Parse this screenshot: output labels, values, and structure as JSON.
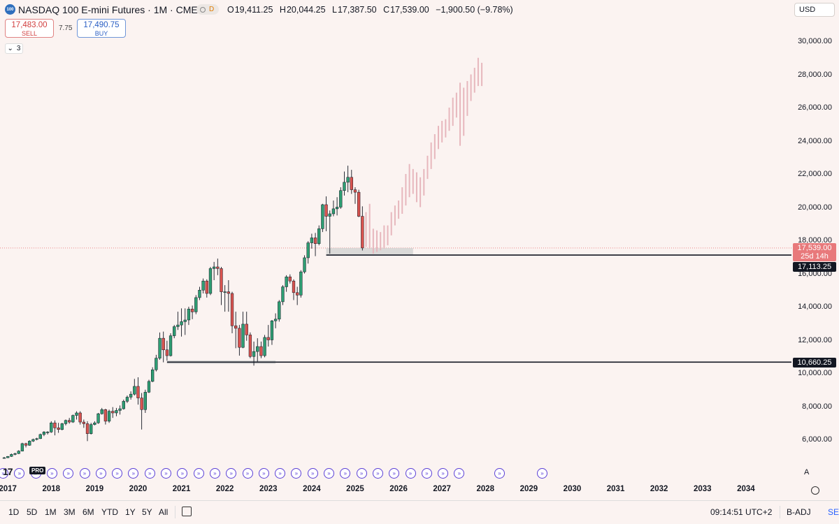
{
  "header": {
    "logo_text": "100",
    "title": "NASDAQ 100 E-mini Futures · 1M · CME",
    "data_badge": "D",
    "ohlc": {
      "o_label": "O",
      "o": "19,411.25",
      "h_label": "H",
      "h": "20,044.25",
      "l_label": "L",
      "l": "17,387.50",
      "c_label": "C",
      "c": "17,539.00",
      "change": "−1,900.50 (−9.78%)"
    },
    "currency": "USD"
  },
  "trade": {
    "sell_price": "17,483.00",
    "sell_label": "SELL",
    "spread": "7.75",
    "buy_price": "17,490.75",
    "buy_label": "BUY"
  },
  "indicators_collapsed_count": "3",
  "price_axis": {
    "ticks": [
      "30,000.00",
      "28,000.00",
      "26,000.00",
      "24,000.00",
      "22,000.00",
      "20,000.00",
      "18,000.00",
      "16,000.00",
      "14,000.00",
      "12,000.00",
      "10,000.00",
      "8,000.00",
      "6,000.00"
    ],
    "tick_values": [
      30000,
      28000,
      26000,
      24000,
      22000,
      20000,
      18000,
      16000,
      14000,
      12000,
      10000,
      8000,
      6000
    ],
    "last_price": "17,539.00",
    "countdown": "25d 14h",
    "level_1": "17,113.25",
    "level_2": "10,660.25"
  },
  "time_axis": {
    "labels": [
      "2017",
      "2018",
      "2019",
      "2020",
      "2021",
      "2022",
      "2023",
      "2024",
      "2025",
      "2026",
      "2027",
      "2028",
      "2029",
      "2030",
      "2031",
      "2032",
      "2033",
      "2034"
    ]
  },
  "events_icon": "dividend-arrow-icon",
  "branding": {
    "tv": "17",
    "pro": "PRO"
  },
  "auto_scale": "A",
  "bottom_bar": {
    "ranges": [
      "1D",
      "5D",
      "1M",
      "3M",
      "6M",
      "YTD",
      "1Y",
      "5Y",
      "All"
    ],
    "clock": "09:14:51 UTC+2",
    "adjust": "B-ADJ",
    "session": "SET"
  },
  "colors": {
    "up": "#2e9e73",
    "down": "#d9534f",
    "projection": "#e7b7bd",
    "background": "#fbf3f1",
    "last_price_tag": "#e8797b",
    "level_tag": "#131722"
  },
  "chart_data": {
    "type": "candlestick",
    "x_start": "2016-12",
    "interval": "1M",
    "ylim": [
      4500,
      31000
    ],
    "levels": [
      17113.25,
      10660.25
    ],
    "last_close": 17539.0,
    "candles": [
      [
        4880,
        4950,
        4850,
        4900
      ],
      [
        4900,
        5000,
        4880,
        4980
      ],
      [
        4980,
        5150,
        4950,
        5100
      ],
      [
        5100,
        5200,
        5050,
        5150
      ],
      [
        5150,
        5350,
        5120,
        5300
      ],
      [
        5300,
        5800,
        5280,
        5750
      ],
      [
        5750,
        5800,
        5520,
        5650
      ],
      [
        5650,
        5950,
        5620,
        5900
      ],
      [
        5900,
        6050,
        5850,
        6000
      ],
      [
        6000,
        6100,
        5950,
        6050
      ],
      [
        6050,
        6350,
        6030,
        6300
      ],
      [
        6300,
        6500,
        6200,
        6450
      ],
      [
        6450,
        6500,
        6300,
        6450
      ],
      [
        6450,
        7100,
        6400,
        7000
      ],
      [
        7000,
        7150,
        6250,
        6700
      ],
      [
        6700,
        7000,
        6400,
        6600
      ],
      [
        6600,
        7000,
        6550,
        6950
      ],
      [
        6950,
        7200,
        6850,
        7150
      ],
      [
        7150,
        7300,
        6950,
        7050
      ],
      [
        7050,
        7500,
        7000,
        7450
      ],
      [
        7450,
        7700,
        7200,
        7600
      ],
      [
        7600,
        7700,
        6900,
        7050
      ],
      [
        7050,
        7200,
        6700,
        6950
      ],
      [
        6950,
        7100,
        5900,
        6350
      ],
      [
        6350,
        7000,
        6300,
        6900
      ],
      [
        6900,
        7100,
        6850,
        7000
      ],
      [
        7000,
        7600,
        6950,
        7550
      ],
      [
        7550,
        7900,
        7500,
        7800
      ],
      [
        7800,
        7850,
        6900,
        7100
      ],
      [
        7100,
        7800,
        7000,
        7700
      ],
      [
        7700,
        7950,
        7300,
        7600
      ],
      [
        7600,
        7900,
        7400,
        7750
      ],
      [
        7750,
        8050,
        7500,
        7850
      ],
      [
        7850,
        8400,
        7800,
        8300
      ],
      [
        8300,
        8650,
        8200,
        8550
      ],
      [
        8550,
        8900,
        8400,
        8730
      ],
      [
        8730,
        9650,
        8650,
        9200
      ],
      [
        9200,
        9750,
        8100,
        8500
      ],
      [
        8500,
        8800,
        6600,
        7800
      ],
      [
        7800,
        9000,
        7600,
        8850
      ],
      [
        8850,
        9600,
        8800,
        9500
      ],
      [
        9500,
        10350,
        9450,
        10200
      ],
      [
        10200,
        11100,
        10100,
        10900
      ],
      [
        10900,
        12450,
        10800,
        12100
      ],
      [
        12100,
        12500,
        10650,
        11400
      ],
      [
        11400,
        11950,
        10750,
        11050
      ],
      [
        11050,
        12400,
        11000,
        12250
      ],
      [
        12250,
        12900,
        12100,
        12800
      ],
      [
        12800,
        13700,
        12600,
        12900
      ],
      [
        12900,
        13900,
        12200,
        13100
      ],
      [
        13100,
        13900,
        12300,
        13200
      ],
      [
        13200,
        14000,
        12900,
        13860
      ],
      [
        13860,
        14070,
        13250,
        13690
      ],
      [
        13690,
        14700,
        13550,
        14550
      ],
      [
        14550,
        15200,
        14400,
        15000
      ],
      [
        15000,
        15700,
        14800,
        15550
      ],
      [
        15550,
        15650,
        14550,
        14800
      ],
      [
        14800,
        16400,
        14700,
        16300
      ],
      [
        16300,
        16700,
        15600,
        16400
      ],
      [
        16400,
        16900,
        15900,
        16300
      ],
      [
        16300,
        16400,
        14100,
        14900
      ],
      [
        14900,
        15300,
        13700,
        14900
      ],
      [
        14900,
        15600,
        13700,
        14800
      ],
      [
        14800,
        14900,
        12400,
        12850
      ],
      [
        12850,
        13700,
        11500,
        12700
      ],
      [
        12700,
        12900,
        11050,
        11550
      ],
      [
        11550,
        13700,
        11500,
        12950
      ],
      [
        12950,
        13700,
        11950,
        12300
      ],
      [
        12300,
        12450,
        10900,
        11000
      ],
      [
        11000,
        11900,
        10450,
        11300
      ],
      [
        11300,
        12100,
        10700,
        11600
      ],
      [
        11600,
        11900,
        10900,
        11050
      ],
      [
        11050,
        12300,
        10950,
        12150
      ],
      [
        12150,
        12900,
        11600,
        12000
      ],
      [
        12000,
        13200,
        11700,
        13150
      ],
      [
        13150,
        13600,
        12700,
        13250
      ],
      [
        13250,
        14400,
        13100,
        14300
      ],
      [
        14300,
        15300,
        14100,
        15200
      ],
      [
        15200,
        15900,
        14900,
        15800
      ],
      [
        15800,
        15950,
        15400,
        15550
      ],
      [
        15550,
        15650,
        14400,
        14850
      ],
      [
        14850,
        15200,
        14100,
        14700
      ],
      [
        14700,
        16200,
        14550,
        16100
      ],
      [
        16100,
        17100,
        16000,
        16950
      ],
      [
        16950,
        17950,
        16600,
        17850
      ],
      [
        17850,
        18400,
        17500,
        18150
      ],
      [
        18150,
        18450,
        17050,
        17800
      ],
      [
        17800,
        18900,
        17700,
        18700
      ],
      [
        18700,
        20200,
        18500,
        20150
      ],
      [
        20150,
        20650,
        18550,
        19450
      ],
      [
        19450,
        19800,
        17200,
        19600
      ],
      [
        19600,
        20400,
        19450,
        19900
      ],
      [
        19900,
        20600,
        19500,
        20000
      ],
      [
        20000,
        21200,
        19900,
        21000
      ],
      [
        21000,
        22150,
        20700,
        21500
      ],
      [
        21500,
        22500,
        20900,
        21800
      ],
      [
        21800,
        22250,
        20800,
        21050
      ],
      [
        21050,
        21200,
        20200,
        20900
      ],
      [
        20900,
        21050,
        19400,
        19450
      ],
      [
        19450,
        20050,
        17390,
        17540
      ]
    ],
    "projection": [
      [
        17600,
        19700
      ],
      [
        17500,
        20200
      ],
      [
        17200,
        18700
      ],
      [
        17300,
        18600
      ],
      [
        17400,
        18500
      ],
      [
        17500,
        18900
      ],
      [
        17700,
        18900
      ],
      [
        18300,
        19700
      ],
      [
        18900,
        20100
      ],
      [
        19300,
        20400
      ],
      [
        19600,
        21200
      ],
      [
        20100,
        22000
      ],
      [
        20600,
        22600
      ],
      [
        20800,
        22300
      ],
      [
        20300,
        22100
      ],
      [
        20000,
        21800
      ],
      [
        20700,
        22300
      ],
      [
        21700,
        23100
      ],
      [
        22300,
        23900
      ],
      [
        22900,
        24400
      ],
      [
        23500,
        24900
      ],
      [
        23900,
        25200
      ],
      [
        24200,
        25300
      ],
      [
        24600,
        26000
      ],
      [
        24900,
        26600
      ],
      [
        25400,
        26900
      ],
      [
        23700,
        27500
      ],
      [
        24300,
        27200
      ],
      [
        25500,
        27600
      ],
      [
        26400,
        28000
      ],
      [
        26900,
        28400
      ],
      [
        27300,
        29000
      ],
      [
        27300,
        28700
      ]
    ]
  }
}
